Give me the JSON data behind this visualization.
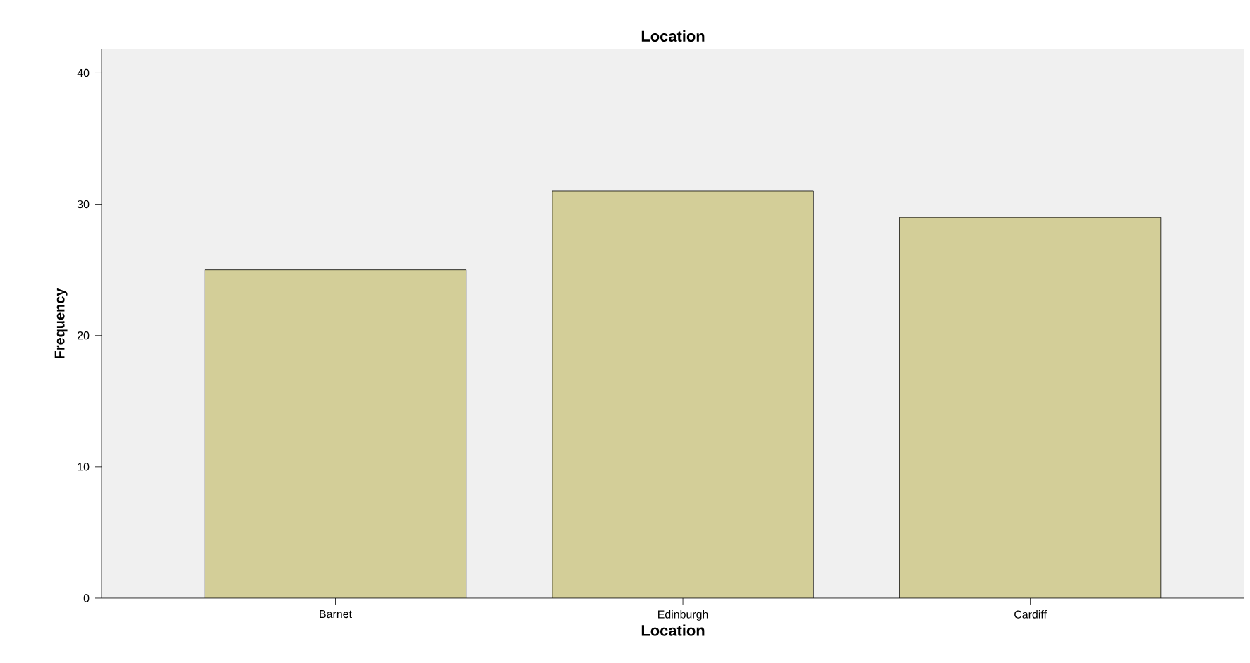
{
  "chart_data": {
    "type": "bar",
    "title": "Location",
    "xlabel": "Location",
    "ylabel": "Frequency",
    "categories": [
      "Barnet",
      "Edinburgh",
      "Cardiff"
    ],
    "values": [
      25,
      31,
      29
    ],
    "color": "#d3ce98",
    "ylim": [
      0,
      41.8
    ],
    "yticks": [
      0,
      10,
      20,
      30,
      40
    ],
    "grid": false
  }
}
